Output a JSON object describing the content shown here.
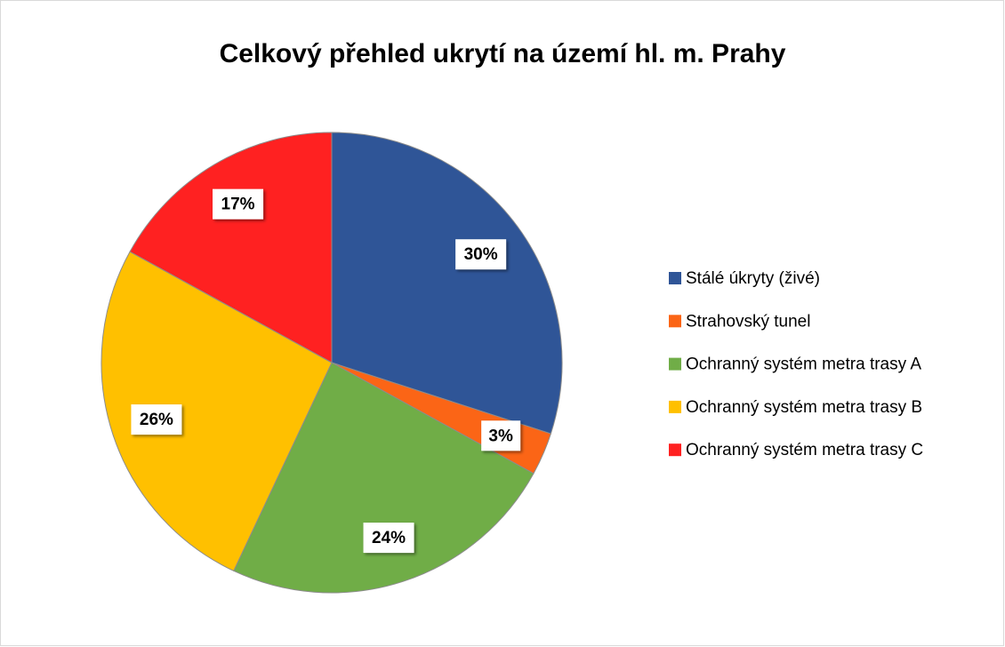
{
  "chart_data": {
    "type": "pie",
    "title": "Celkový přehled ukrytí na území hl. m. Prahy",
    "categories": [
      "Stálé úkryty (živé)",
      "Strahovský tunel",
      "Ochranný systém metra trasy A",
      "Ochranný systém metra trasy B",
      "Ochranný systém metra trasy C"
    ],
    "values": [
      30,
      3,
      24,
      26,
      17
    ],
    "value_labels": [
      "30%",
      "3%",
      "24%",
      "26%",
      "17%"
    ],
    "colors": [
      "#2f5597",
      "#fb6516",
      "#70ad47",
      "#ffc000",
      "#ff2121"
    ],
    "legend": "right"
  }
}
